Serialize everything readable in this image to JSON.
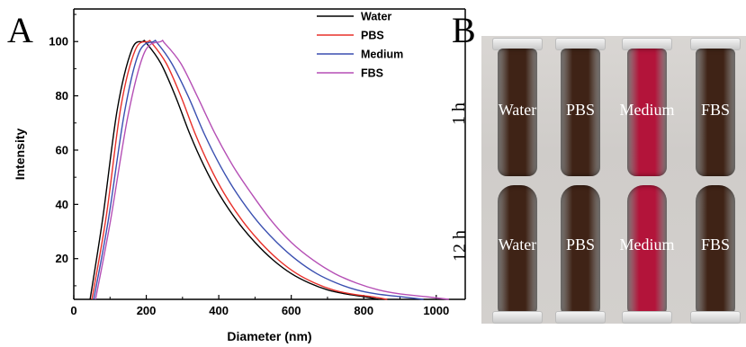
{
  "panels": {
    "a_letter": "A",
    "b_letter": "B"
  },
  "chart_data": {
    "type": "line",
    "title": "",
    "xlabel": "Diameter (nm)",
    "ylabel": "Intensity",
    "xlim": [
      0,
      1080
    ],
    "ylim": [
      5,
      112
    ],
    "xticks": [
      0,
      200,
      400,
      600,
      800,
      1000
    ],
    "yticks": [
      20,
      40,
      60,
      80,
      100
    ],
    "legend": "top-right",
    "series": [
      {
        "name": "Water",
        "color": "#000000",
        "x": [
          45,
          80,
          120,
          160,
          190,
          200,
          240,
          280,
          320,
          360,
          400,
          450,
          500,
          550,
          600,
          650,
          700,
          750,
          800,
          840
        ],
        "y": [
          5,
          35,
          75,
          97,
          100,
          99.5,
          92,
          80,
          66,
          54,
          44,
          34,
          26,
          19.5,
          14.5,
          11,
          8.5,
          7,
          6,
          5
        ]
      },
      {
        "name": "PBS",
        "color": "#e8302a",
        "x": [
          50,
          90,
          130,
          170,
          205,
          215,
          255,
          295,
          335,
          375,
          415,
          465,
          515,
          565,
          615,
          665,
          715,
          765,
          820,
          865
        ],
        "y": [
          5,
          36,
          76,
          97,
          100,
          99.5,
          92,
          80,
          66,
          54,
          44,
          34,
          26,
          19.5,
          14.5,
          11,
          8.5,
          7,
          6,
          5
        ]
      },
      {
        "name": "Medium",
        "color": "#3a4fb0",
        "x": [
          55,
          95,
          140,
          180,
          220,
          230,
          270,
          315,
          360,
          405,
          450,
          505,
          560,
          615,
          670,
          725,
          780,
          835,
          900,
          965
        ],
        "y": [
          5,
          34,
          74,
          96,
          100,
          99.5,
          92,
          80,
          66,
          54,
          44,
          34,
          26,
          19.5,
          14.5,
          11,
          8.5,
          7,
          6,
          5
        ]
      },
      {
        "name": "FBS",
        "color": "#b54fb5",
        "x": [
          60,
          100,
          150,
          195,
          240,
          250,
          295,
          340,
          390,
          440,
          490,
          545,
          600,
          660,
          720,
          780,
          840,
          900,
          970,
          1035
        ],
        "y": [
          5,
          33,
          73,
          96,
          100,
          99.5,
          92,
          80,
          66,
          54,
          44,
          34,
          26,
          19.5,
          14.5,
          11,
          8.5,
          7,
          6,
          5
        ]
      }
    ]
  },
  "photo": {
    "row_labels": [
      "1 h",
      "12 h"
    ],
    "tube_labels": [
      "Water",
      "PBS",
      "Medium",
      "FBS"
    ],
    "tube_colors": [
      "#3f2316",
      "#3f2316",
      "#b3143a",
      "#3f2316"
    ]
  }
}
